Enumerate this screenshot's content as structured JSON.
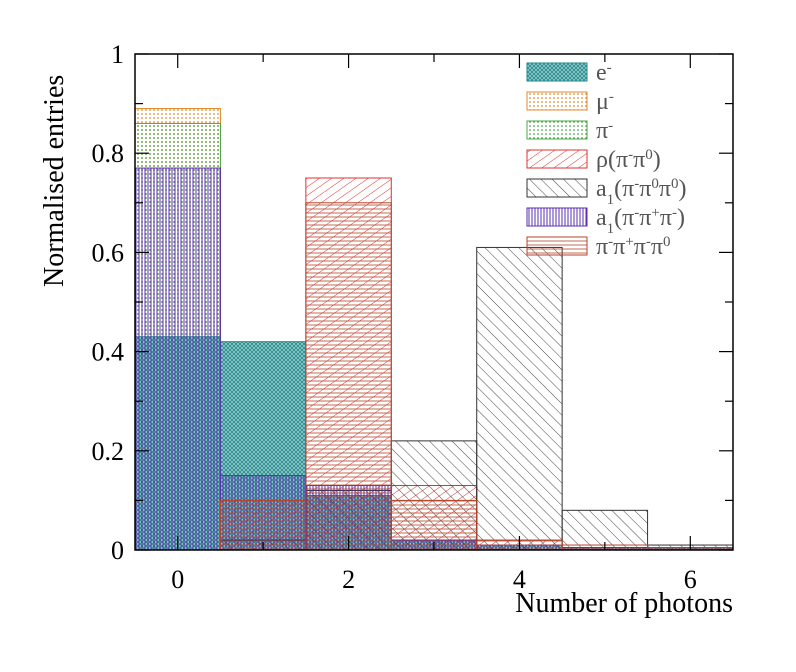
{
  "chart_data": {
    "type": "bar",
    "xlabel": "Number of photons",
    "ylabel": "Normalised entries",
    "xlim": [
      -0.5,
      6.5
    ],
    "ylim": [
      0,
      1
    ],
    "xticks": [
      "0",
      "2",
      "4",
      "6"
    ],
    "yticks": [
      "0",
      "0.2",
      "0.4",
      "0.6",
      "0.8",
      "1"
    ],
    "bin_centers": [
      0,
      1,
      2,
      3,
      4,
      5,
      6
    ],
    "grid": false,
    "legend_position": "top-right",
    "series": [
      {
        "name": "e⁻",
        "legend_html": "e<tspan baseline-shift='super' font-size='15'>-</tspan>",
        "color": "#1f8a8a",
        "pattern": "dense-grid",
        "values": [
          0.43,
          0.42,
          0.11,
          0.02,
          0.01,
          0.005,
          0.005
        ]
      },
      {
        "name": "μ⁻",
        "legend_html": "μ<tspan baseline-shift='super' font-size='15'>-</tspan>",
        "color": "#e08a2a",
        "pattern": "dots",
        "values": [
          0.89,
          0.0,
          0.0,
          0.0,
          0.0,
          0.0,
          0.0
        ]
      },
      {
        "name": "π⁻",
        "legend_html": "π<tspan baseline-shift='super' font-size='15'>-</tspan>",
        "color": "#4aa84a",
        "pattern": "dots",
        "values": [
          0.86,
          0.0,
          0.0,
          0.0,
          0.0,
          0.0,
          0.0
        ]
      },
      {
        "name": "ρ(π⁻π⁰)",
        "legend_html": "ρ(π<tspan baseline-shift='super' font-size='15'>-</tspan>π<tspan baseline-shift='super' font-size='15'>0</tspan>)",
        "color": "#e03030",
        "pattern": "diag-right",
        "values": [
          0.0,
          0.1,
          0.75,
          0.13,
          0.02,
          0.005,
          0.005
        ]
      },
      {
        "name": "a₁(π⁻π⁰π⁰)",
        "legend_html": "a<tspan baseline-shift='sub' font-size='15'>1</tspan>(π<tspan baseline-shift='super' font-size='15'>-</tspan>π<tspan baseline-shift='super' font-size='15'>0</tspan>π<tspan baseline-shift='super' font-size='15'>0</tspan>)",
        "color": "#333333",
        "pattern": "diag-left",
        "values": [
          0.0,
          0.02,
          0.12,
          0.22,
          0.61,
          0.08,
          0.01
        ]
      },
      {
        "name": "a₁(π⁻π⁺π⁻)",
        "legend_html": "a<tspan baseline-shift='sub' font-size='15'>1</tspan>(π<tspan baseline-shift='super' font-size='15'>-</tspan>π<tspan baseline-shift='super' font-size='15'>+</tspan>π<tspan baseline-shift='super' font-size='15'>-</tspan>)",
        "color": "#5a2fb0",
        "pattern": "vertical",
        "values": [
          0.77,
          0.15,
          0.13,
          0.02,
          0.01,
          0.005,
          0.005
        ]
      },
      {
        "name": "π⁻π⁺π⁻π⁰",
        "legend_html": "π<tspan baseline-shift='super' font-size='15'>-</tspan>π<tspan baseline-shift='super' font-size='15'>+</tspan>π<tspan baseline-shift='super' font-size='15'>-</tspan>π<tspan baseline-shift='super' font-size='15'>0</tspan>",
        "color": "#b5452a",
        "pattern": "horizontal",
        "values": [
          0.0,
          0.1,
          0.7,
          0.1,
          0.02,
          0.01,
          0.005
        ]
      }
    ]
  }
}
